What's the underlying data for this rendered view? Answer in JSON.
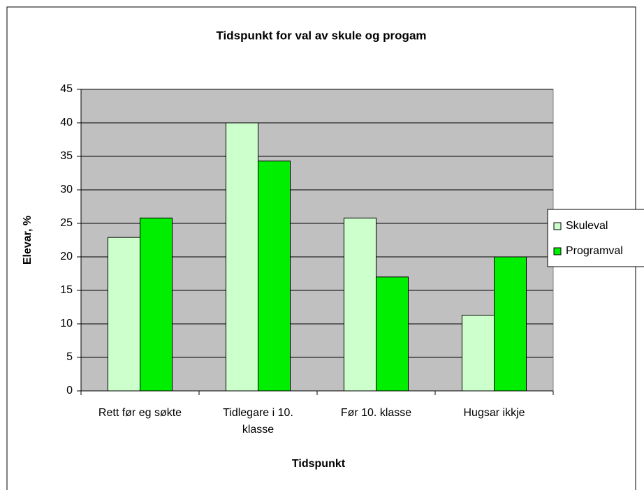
{
  "chart_data": {
    "type": "bar",
    "title": "Tidspunkt for val av skule og progam",
    "x_label": "Tidspunkt",
    "y_label": "Elevar, %",
    "categories": [
      "Rett før eg søkte",
      "Tidlegare i 10. klasse",
      "Før 10. klasse",
      "Hugsar ikkje"
    ],
    "series": [
      {
        "name": "Skuleval",
        "color": "#ccffcc",
        "values": [
          22.9,
          40,
          25.8,
          11.3
        ]
      },
      {
        "name": "Programval",
        "color": "#00ee00",
        "values": [
          25.8,
          34.3,
          17,
          20
        ]
      }
    ],
    "ylim": [
      0,
      45
    ],
    "yticks": [
      0,
      5,
      10,
      15,
      20,
      25,
      30,
      35,
      40,
      45
    ],
    "grid": true,
    "plot_background": "#c0c0c0",
    "legend": "right"
  }
}
